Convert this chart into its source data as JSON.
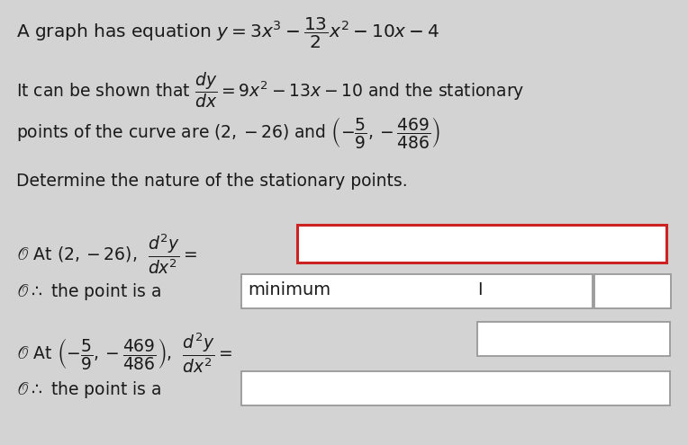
{
  "bg_color": "#d3d3d3",
  "text_color": "#1a1a1a",
  "box1_color": "#cc2222",
  "box_gray_color": "#999999",
  "font_size": 13.5,
  "figsize": [
    7.64,
    4.95
  ],
  "dpi": 100
}
